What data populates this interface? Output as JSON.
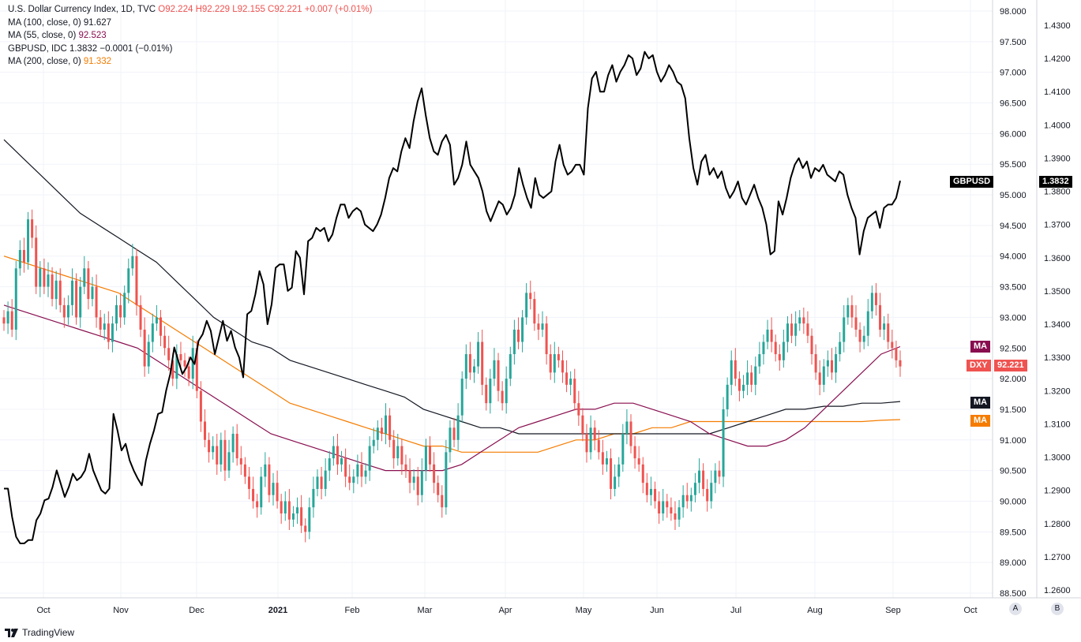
{
  "legend": {
    "dxy": {
      "name": "U.S. Dollar Currency Index, 1D, TVC",
      "o": "O92.224",
      "h": "H92.229",
      "l": "L92.155",
      "c": "C92.221",
      "chg": "+0.007 (+0.01%)"
    },
    "ma100": {
      "name": "MA (100, close, 0)",
      "value": "91.627"
    },
    "ma55": {
      "name": "MA (55, close, 0)",
      "value": "92.523"
    },
    "gbp": {
      "name": "GBPUSD, IDC",
      "value": "1.3832",
      "chg": "−0.0001 (−0.01%)"
    },
    "ma200": {
      "name": "MA (200, close, 0)",
      "value": "91.332"
    }
  },
  "badges": {
    "gbp_label": "GBPUSD",
    "gbp_value": "1.3832",
    "ma55_label": "MA",
    "dxy_label": "DXY",
    "dxy_value": "92.221",
    "ma100_label": "MA",
    "ma200_label": "MA"
  },
  "colors": {
    "up": "#26a69a",
    "down": "#ef5350",
    "gbp": "#000000",
    "ma55": "#880e4f",
    "ma100": "#131722",
    "ma200": "#f57c00",
    "red_text": "#ef5350"
  },
  "brand": "TradingView",
  "scale_buttons": {
    "a": "A",
    "b": "B"
  },
  "chart_data": {
    "type": "line",
    "x_labels": [
      "Oct",
      "Nov",
      "Dec",
      "2021",
      "Feb",
      "Mar",
      "Apr",
      "May",
      "Jun",
      "Jul",
      "Aug",
      "Sep",
      "Oct"
    ],
    "dxy_axis": {
      "ticks": [
        "98.000",
        "97.500",
        "97.000",
        "96.500",
        "96.000",
        "95.500",
        "95.000",
        "94.500",
        "94.000",
        "93.500",
        "93.000",
        "92.500",
        "92.000",
        "91.500",
        "91.000",
        "90.500",
        "90.000",
        "89.500",
        "89.000",
        "88.500"
      ],
      "range": [
        88.5,
        98.0
      ]
    },
    "gbp_axis": {
      "ticks": [
        "1.4300",
        "1.4200",
        "1.4100",
        "1.4000",
        "1.3900",
        "1.3800",
        "1.3700",
        "1.3600",
        "1.3500",
        "1.3400",
        "1.3300",
        "1.3200",
        "1.3100",
        "1.3000",
        "1.2900",
        "1.2800",
        "1.2700",
        "1.2600"
      ],
      "range": [
        1.26,
        1.43
      ]
    },
    "dxy_close": [
      92.9,
      93.1,
      92.8,
      93.8,
      94.1,
      93.9,
      94.6,
      94.3,
      93.5,
      93.8,
      93.5,
      93.7,
      93.3,
      93.6,
      93.2,
      93.0,
      93.2,
      93.6,
      93.0,
      93.5,
      93.8,
      93.3,
      93.5,
      93.0,
      92.8,
      92.9,
      92.6,
      92.9,
      93.2,
      93.0,
      93.4,
      93.8,
      94.0,
      93.2,
      92.8,
      92.2,
      92.6,
      92.9,
      93.0,
      92.7,
      92.5,
      92.3,
      92.0,
      92.4,
      92.3,
      92.2,
      92.0,
      92.5,
      91.8,
      91.3,
      91.0,
      90.8,
      90.9,
      90.6,
      91.0,
      90.5,
      90.8,
      91.1,
      90.7,
      90.6,
      90.4,
      90.2,
      90.0,
      89.9,
      90.4,
      90.6,
      90.1,
      90.3,
      90.0,
      89.8,
      90.0,
      89.7,
      89.8,
      89.9,
      89.6,
      89.5,
      89.9,
      90.2,
      90.4,
      90.2,
      90.5,
      90.7,
      90.9,
      90.6,
      90.7,
      90.4,
      90.3,
      90.4,
      90.6,
      90.4,
      90.5,
      90.9,
      91.0,
      91.2,
      91.1,
      91.4,
      91.0,
      90.7,
      90.9,
      90.6,
      90.5,
      90.3,
      90.4,
      90.1,
      90.5,
      90.9,
      90.6,
      90.3,
      90.1,
      89.9,
      90.8,
      91.2,
      91.0,
      91.4,
      92.0,
      92.4,
      92.1,
      92.2,
      92.6,
      91.9,
      91.6,
      92.0,
      92.3,
      91.8,
      91.6,
      92.0,
      92.4,
      92.8,
      92.6,
      93.0,
      93.4,
      93.3,
      92.9,
      92.8,
      92.9,
      92.4,
      92.1,
      92.4,
      92.3,
      92.1,
      91.9,
      92.0,
      91.6,
      91.4,
      91.1,
      90.8,
      91.2,
      91.0,
      90.8,
      90.6,
      90.7,
      90.2,
      90.4,
      90.6,
      91.1,
      91.3,
      90.9,
      90.7,
      90.6,
      90.3,
      90.1,
      90.2,
      90.0,
      89.8,
      90.0,
      89.9,
      89.8,
      89.7,
      89.9,
      90.1,
      90.0,
      90.1,
      90.3,
      90.5,
      90.2,
      90.0,
      90.3,
      90.5,
      90.4,
      91.5,
      91.9,
      92.3,
      92.0,
      91.8,
      91.9,
      92.1,
      91.9,
      92.2,
      92.4,
      92.6,
      92.8,
      92.6,
      92.4,
      92.3,
      92.6,
      92.9,
      92.7,
      92.9,
      93.0,
      92.9,
      92.7,
      92.4,
      92.1,
      91.9,
      92.2,
      92.3,
      92.1,
      92.4,
      92.6,
      93.0,
      93.2,
      93.0,
      92.8,
      92.6,
      92.7,
      93.1,
      93.4,
      93.2,
      92.8,
      92.9,
      92.6,
      92.5,
      92.3,
      92.2
    ],
    "gbp_close": [
      1.2905,
      1.2905,
      1.282,
      1.276,
      1.274,
      1.274,
      1.275,
      1.275,
      1.281,
      1.283,
      1.287,
      1.2875,
      1.291,
      1.296,
      1.292,
      1.288,
      1.291,
      1.295,
      1.293,
      1.294,
      1.296,
      1.301,
      1.296,
      1.293,
      1.29,
      1.289,
      1.2905,
      1.313,
      1.308,
      1.302,
      1.304,
      1.299,
      1.296,
      1.2935,
      1.2915,
      1.299,
      1.304,
      1.308,
      1.313,
      1.3135,
      1.32,
      1.325,
      1.333,
      1.329,
      1.325,
      1.327,
      1.33,
      1.328,
      1.335,
      1.337,
      1.341,
      1.338,
      1.331,
      1.336,
      1.341,
      1.335,
      1.338,
      1.333,
      1.33,
      1.324,
      1.343,
      1.344,
      1.349,
      1.356,
      1.352,
      1.34,
      1.346,
      1.357,
      1.358,
      1.358,
      1.35,
      1.351,
      1.362,
      1.36,
      1.349,
      1.365,
      1.366,
      1.369,
      1.368,
      1.369,
      1.365,
      1.367,
      1.372,
      1.376,
      1.376,
      1.372,
      1.374,
      1.375,
      1.374,
      1.37,
      1.369,
      1.368,
      1.37,
      1.373,
      1.378,
      1.384,
      1.387,
      1.386,
      1.392,
      1.396,
      1.393,
      1.401,
      1.407,
      1.411,
      1.403,
      1.396,
      1.392,
      1.391,
      1.395,
      1.397,
      1.394,
      1.382,
      1.384,
      1.388,
      1.395,
      1.388,
      1.386,
      1.384,
      1.38,
      1.374,
      1.371,
      1.374,
      1.377,
      1.376,
      1.373,
      1.375,
      1.379,
      1.387,
      1.382,
      1.378,
      1.375,
      1.384,
      1.379,
      1.378,
      1.379,
      1.38,
      1.389,
      1.394,
      1.388,
      1.385,
      1.386,
      1.388,
      1.388,
      1.385,
      1.405,
      1.414,
      1.416,
      1.41,
      1.41,
      1.415,
      1.418,
      1.413,
      1.416,
      1.418,
      1.421,
      1.42,
      1.415,
      1.417,
      1.422,
      1.42,
      1.421,
      1.416,
      1.413,
      1.415,
      1.418,
      1.416,
      1.413,
      1.412,
      1.408,
      1.396,
      1.387,
      1.382,
      1.389,
      1.391,
      1.385,
      1.387,
      1.384,
      1.386,
      1.381,
      1.378,
      1.38,
      1.383,
      1.378,
      1.376,
      1.379,
      1.382,
      1.378,
      1.375,
      1.37,
      1.361,
      1.362,
      1.377,
      1.373,
      1.378,
      1.384,
      1.388,
      1.39,
      1.387,
      1.389,
      1.384,
      1.387,
      1.386,
      1.388,
      1.385,
      1.384,
      1.383,
      1.386,
      1.385,
      1.379,
      1.375,
      1.372,
      1.361,
      1.368,
      1.372,
      1.373,
      1.374,
      1.369,
      1.375,
      1.376,
      1.376,
      1.378,
      1.3832
    ],
    "ma55": [
      93.2,
      93.1,
      93.0,
      92.9,
      92.8,
      92.7,
      92.6,
      92.5,
      92.3,
      92.1,
      91.9,
      91.7,
      91.5,
      91.3,
      91.1,
      91.0,
      90.9,
      90.8,
      90.7,
      90.6,
      90.5,
      90.5,
      90.5,
      90.5,
      90.6,
      90.8,
      91.0,
      91.2,
      91.3,
      91.4,
      91.5,
      91.5,
      91.6,
      91.6,
      91.5,
      91.4,
      91.3,
      91.1,
      91.0,
      90.9,
      90.9,
      91.0,
      91.2,
      91.5,
      91.8,
      92.1,
      92.4,
      92.523
    ],
    "ma100": [
      95.9,
      95.6,
      95.3,
      95.0,
      94.7,
      94.5,
      94.3,
      94.1,
      93.9,
      93.6,
      93.3,
      93.0,
      92.8,
      92.6,
      92.5,
      92.3,
      92.2,
      92.1,
      92.0,
      91.9,
      91.8,
      91.7,
      91.5,
      91.4,
      91.3,
      91.2,
      91.2,
      91.1,
      91.1,
      91.1,
      91.1,
      91.1,
      91.1,
      91.1,
      91.1,
      91.1,
      91.1,
      91.1,
      91.2,
      91.3,
      91.4,
      91.5,
      91.5,
      91.55,
      91.55,
      91.6,
      91.6,
      91.627
    ],
    "ma200": [
      94.0,
      93.9,
      93.8,
      93.7,
      93.6,
      93.5,
      93.4,
      93.2,
      93.0,
      92.8,
      92.6,
      92.4,
      92.2,
      92.0,
      91.8,
      91.6,
      91.5,
      91.4,
      91.3,
      91.2,
      91.1,
      91.0,
      90.9,
      90.9,
      90.8,
      90.8,
      90.8,
      90.8,
      90.8,
      90.9,
      91.0,
      91.0,
      91.1,
      91.1,
      91.2,
      91.2,
      91.3,
      91.3,
      91.3,
      91.3,
      91.3,
      91.3,
      91.3,
      91.3,
      91.3,
      91.3,
      91.32,
      91.332
    ]
  }
}
